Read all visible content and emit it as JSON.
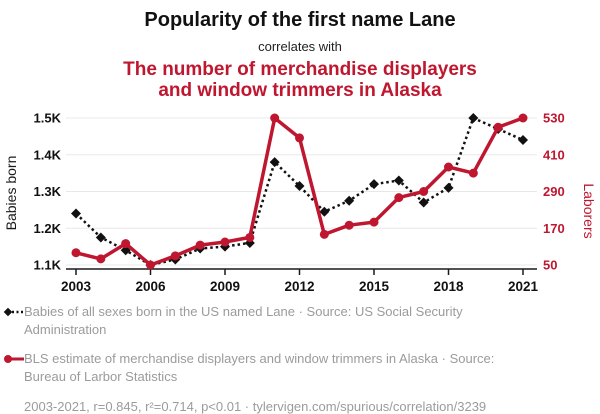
{
  "header": {
    "title": "Popularity of the first name Lane",
    "connector": "correlates with",
    "subtitle_line1": "The number of merchandise displayers",
    "subtitle_line2": "and window trimmers in Alaska"
  },
  "colors": {
    "red": "#bf1730",
    "black": "#111111",
    "gray_text": "#9b9b9b",
    "gridline": "#e8e8e8",
    "axis_line": "#1a1a1a"
  },
  "chart_data": {
    "type": "line",
    "x": [
      2003,
      2004,
      2005,
      2006,
      2007,
      2008,
      2009,
      2010,
      2011,
      2012,
      2013,
      2014,
      2015,
      2016,
      2017,
      2018,
      2019,
      2020,
      2021
    ],
    "x_tick_labels": [
      "2003",
      "2006",
      "2009",
      "2012",
      "2015",
      "2018",
      "2021"
    ],
    "x_tick_years": [
      2003,
      2006,
      2009,
      2012,
      2015,
      2018,
      2021
    ],
    "left_axis": {
      "label": "Babies born",
      "tick_labels": [
        "1.1K",
        "1.2K",
        "1.3K",
        "1.4K",
        "1.5K"
      ],
      "tick_values": [
        1100,
        1200,
        1300,
        1400,
        1500
      ],
      "min": 1100,
      "max": 1500
    },
    "right_axis": {
      "label": "Laborers",
      "tick_labels": [
        "50",
        "170",
        "290",
        "410",
        "530"
      ],
      "tick_values": [
        50,
        170,
        290,
        410,
        530
      ],
      "min": 50,
      "max": 530
    },
    "grid": "horizontal-only",
    "legend_position": "below",
    "series": [
      {
        "name": "Babies of all sexes born in the US named Lane",
        "axis": "left",
        "color": "#111111",
        "line_style": "dashed",
        "marker": "diamond",
        "values": [
          1240,
          1175,
          1140,
          1100,
          1115,
          1145,
          1150,
          1160,
          1380,
          1315,
          1245,
          1275,
          1320,
          1330,
          1270,
          1310,
          1500,
          1470,
          1440
        ]
      },
      {
        "name": "BLS estimate of merchandise displayers and window trimmers in Alaska",
        "axis": "right",
        "color": "#bf1730",
        "line_style": "solid",
        "marker": "circle",
        "values": [
          90,
          70,
          120,
          50,
          80,
          115,
          125,
          140,
          530,
          465,
          150,
          180,
          190,
          270,
          290,
          370,
          350,
          500,
          530
        ]
      }
    ]
  },
  "legend": {
    "items": [
      {
        "label": "Babies of all sexes born in the US named Lane · Source: US Social Security Administration"
      },
      {
        "label": "BLS estimate of merchandise displayers and window trimmers in Alaska · Source: Bureau of Larbor Statistics"
      }
    ]
  },
  "footer": "2003-2021, r=0.845, r²=0.714, p<0.01 · tylervigen.com/spurious/correlation/3239"
}
